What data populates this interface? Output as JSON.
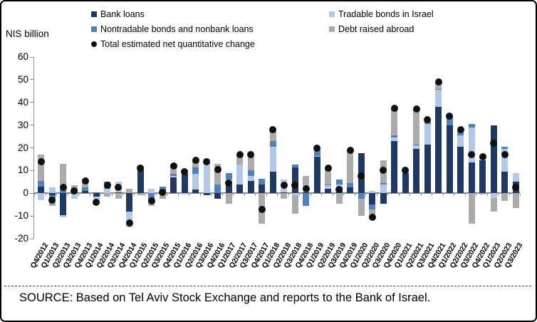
{
  "source": {
    "text": "SOURCE: Based on Tel Aviv Stock Exchange and reports to the Bank of Israel."
  },
  "axis": {
    "unit_label": "NIS billion",
    "yticks": [
      60,
      50,
      40,
      30,
      20,
      10,
      0,
      -10,
      -20
    ]
  },
  "chart_data": {
    "type": "bar",
    "stacked": true,
    "title": "",
    "xlabel": "",
    "ylabel": "NIS billion",
    "ylim": [
      -20,
      60
    ],
    "grid": false,
    "legend_position": "top",
    "categories": [
      "Q4/2012",
      "Q1/2013",
      "Q2/2013",
      "Q3/2013",
      "Q4/2013",
      "Q1/2014",
      "Q2/2014",
      "Q3/2014",
      "Q4/2014",
      "Q1/2015",
      "Q2/2015",
      "Q3/2015",
      "Q4/2015",
      "Q1/2016",
      "Q2/2016",
      "Q3/2016",
      "Q4/2016",
      "Q1/2017",
      "Q2/2017",
      "Q3/2017",
      "Q4/2017",
      "Q1/2018",
      "Q2/2018",
      "Q3/2018",
      "Q4/2018",
      "Q1/2019",
      "Q2/2019",
      "Q3/2019",
      "Q4/2019",
      "Q1/2020",
      "Q2/2020",
      "Q3/2020",
      "Q4/2020",
      "Q1/2021",
      "Q2/2021",
      "Q3/2021",
      "Q4/2021",
      "Q1/2022",
      "Q2/2022",
      "Q3/2022",
      "Q4/2022",
      "Q1/2023",
      "Q2/2023",
      "Q3/2023"
    ],
    "series": [
      {
        "name": "Bank loans",
        "color": "#1f3864",
        "values": [
          3,
          -1,
          -9.5,
          1.5,
          1,
          -1.5,
          0,
          0.5,
          -8,
          10.5,
          0,
          1.5,
          7,
          8.5,
          1.5,
          -1,
          -2.5,
          3.5,
          4,
          5.5,
          4,
          9.5,
          0.5,
          11.5,
          0.5,
          16,
          2,
          2.5,
          2.5,
          17.5,
          -5,
          -4.5,
          23,
          9,
          19.5,
          21.5,
          38,
          30,
          20.5,
          13.5,
          14.5,
          30,
          9.5,
          5
        ]
      },
      {
        "name": "Tradable bonds in Israel",
        "color": "#b4c7e7",
        "values": [
          -3,
          2.5,
          -1,
          -2.5,
          0,
          -2.5,
          2,
          4.5,
          -7,
          0,
          2,
          0,
          0.5,
          -0.5,
          7,
          15,
          0,
          2.5,
          8.5,
          2,
          0,
          11,
          5.5,
          -1,
          2.5,
          0.5,
          1.5,
          1.5,
          0,
          0,
          1,
          4,
          1.5,
          1,
          1.5,
          9,
          7.5,
          0,
          5,
          15.5,
          1,
          -2,
          10,
          4
        ]
      },
      {
        "name": "Nontradable bonds and nonbank loans",
        "color": "#4f81bd",
        "values": [
          2.5,
          -1.5,
          1.5,
          0.5,
          1.5,
          0.5,
          3,
          0,
          0,
          1.5,
          -4,
          1.5,
          1,
          0.5,
          3,
          0,
          4,
          3,
          0,
          2.5,
          2.5,
          2.5,
          0,
          1,
          -5.5,
          2.5,
          0.5,
          2,
          2,
          -2.5,
          -2,
          0.5,
          1,
          0,
          0.5,
          2,
          0.5,
          4,
          1.5,
          1.5,
          1,
          0,
          1,
          0
        ]
      },
      {
        "name": "Debt raised abroad",
        "color": "#ababab",
        "values": [
          11.5,
          -3,
          11.5,
          1.5,
          3,
          -0.5,
          -1.5,
          -2.5,
          2,
          -1,
          -1.5,
          -2.5,
          3.5,
          1,
          3,
          0,
          9,
          -4.5,
          4.5,
          7,
          -13.5,
          5,
          -2.5,
          -8,
          4.5,
          1,
          7,
          -4.5,
          14.5,
          -7.5,
          -4.5,
          10,
          12,
          0,
          15.5,
          0,
          3,
          0,
          1,
          -13.5,
          -0.5,
          -6,
          -3.5,
          -6.5
        ]
      }
    ],
    "dot_series": {
      "name": "Total estimated net quantitative change",
      "color": "#111111",
      "values": [
        14,
        -3,
        2.5,
        1,
        5.5,
        -4,
        3.5,
        2.5,
        -13,
        11,
        -3.5,
        0.5,
        12,
        9.5,
        14.5,
        14,
        10.5,
        4.5,
        17,
        17,
        -7,
        28,
        3.5,
        3.5,
        2,
        20,
        11,
        1.5,
        19,
        7.5,
        -10.5,
        10,
        37.5,
        10,
        37,
        32.5,
        49,
        34,
        28,
        17,
        16,
        22,
        17,
        2.5
      ]
    }
  }
}
